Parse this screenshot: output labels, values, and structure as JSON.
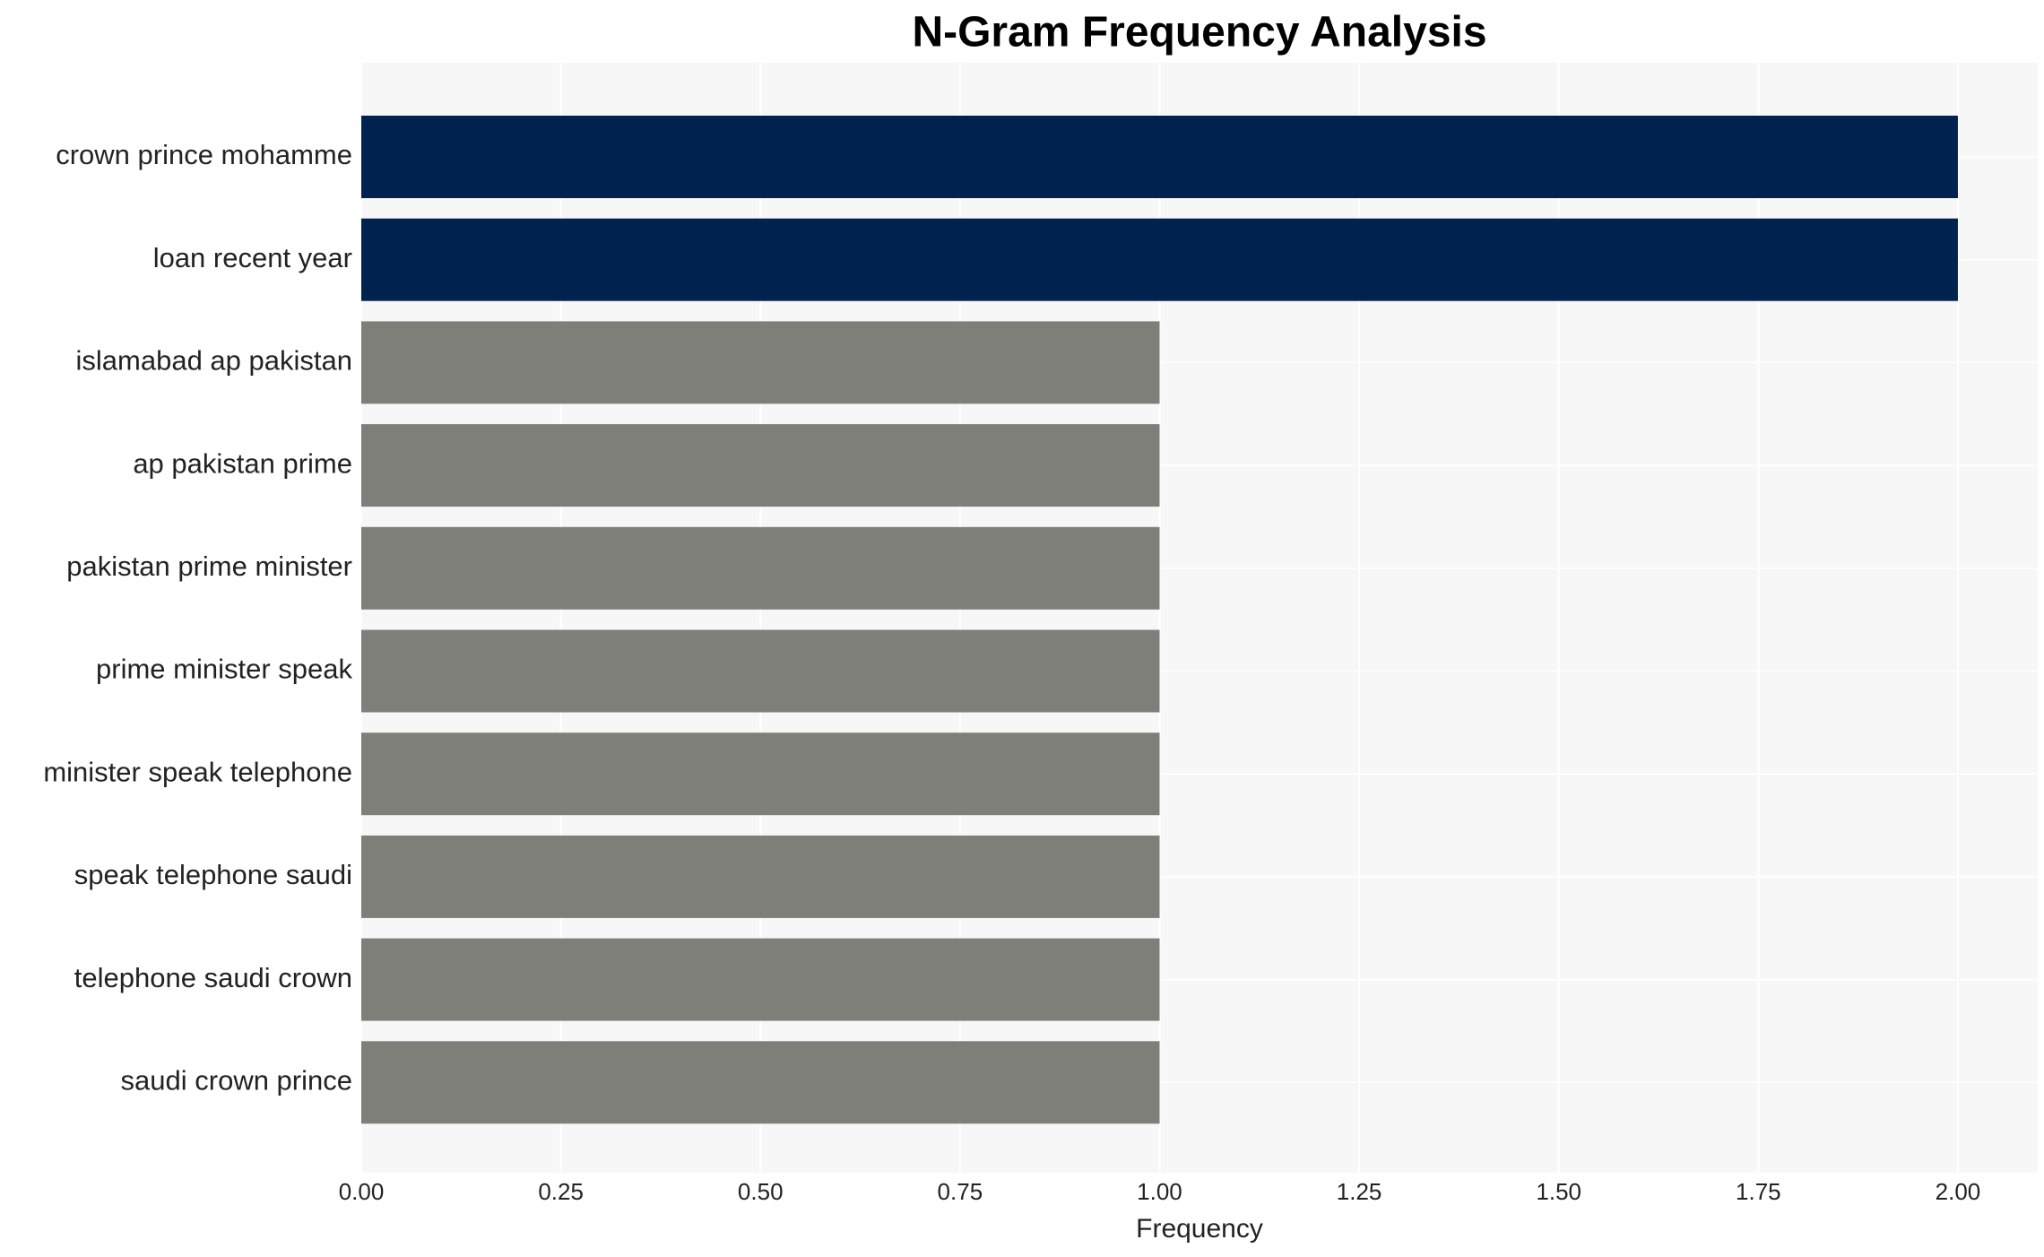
{
  "chart_data": {
    "type": "barh",
    "title": "N-Gram Frequency Analysis",
    "x_label": "Frequency",
    "categories": [
      "crown prince mohamme",
      "loan recent year",
      "islamabad ap pakistan",
      "ap pakistan prime",
      "pakistan prime minister",
      "prime minister speak",
      "minister speak telephone",
      "speak telephone saudi",
      "telephone saudi crown",
      "saudi crown prince"
    ],
    "values": [
      2,
      2,
      1,
      1,
      1,
      1,
      1,
      1,
      1,
      1
    ],
    "colors": [
      "#00224e",
      "#00224e",
      "#7f7f7a",
      "#7f7f7a",
      "#7f7f7a",
      "#7f7f7a",
      "#7f7f7a",
      "#7f7f7a",
      "#7f7f7a",
      "#7f7f7a"
    ],
    "xlim": [
      0,
      2.1
    ],
    "xticks": [
      {
        "value": 0,
        "label": "0.00"
      },
      {
        "value": 0.25,
        "label": "0.25"
      },
      {
        "value": 0.5,
        "label": "0.50"
      },
      {
        "value": 0.75,
        "label": "0.75"
      },
      {
        "value": 1,
        "label": "1.00"
      },
      {
        "value": 1.25,
        "label": "1.25"
      },
      {
        "value": 1.5,
        "label": "1.50"
      },
      {
        "value": 1.75,
        "label": "1.75"
      },
      {
        "value": 2,
        "label": "2.00"
      }
    ],
    "grid": true
  }
}
